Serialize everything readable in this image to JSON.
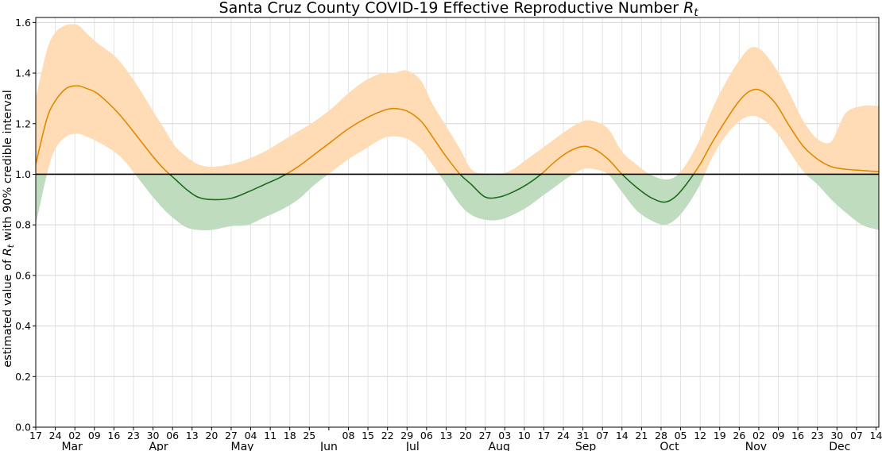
{
  "chart_data": {
    "type": "area",
    "title": "Santa Cruz County COVID-19 Effective Reproductive Number ",
    "title_math": "R",
    "title_math_sub": "t",
    "ylabel_pre": "estimated value of ",
    "ylabel_math": "R",
    "ylabel_math_sub": "t",
    "ylabel_post": " with 90% credible interval",
    "ylim": [
      0,
      1.62
    ],
    "y_ticks": [
      0.0,
      0.2,
      0.4,
      0.6,
      0.8,
      1.0,
      1.2,
      1.4,
      1.6
    ],
    "y_tick_labels": [
      "0.0",
      "0.2",
      "0.4",
      "0.6",
      "0.8",
      "1.0",
      "1.2",
      "1.4",
      "1.6"
    ],
    "xlim": [
      "2020-02-17",
      "2020-12-15"
    ],
    "x_ticks": [
      {
        "date": "2020-02-17",
        "label": "17"
      },
      {
        "date": "2020-02-24",
        "label": "24"
      },
      {
        "date": "2020-03-02",
        "label": "02"
      },
      {
        "date": "2020-03-09",
        "label": "09"
      },
      {
        "date": "2020-03-16",
        "label": "16"
      },
      {
        "date": "2020-03-23",
        "label": "23"
      },
      {
        "date": "2020-03-30",
        "label": "30"
      },
      {
        "date": "2020-04-06",
        "label": "06"
      },
      {
        "date": "2020-04-13",
        "label": "13"
      },
      {
        "date": "2020-04-20",
        "label": "20"
      },
      {
        "date": "2020-04-27",
        "label": "27"
      },
      {
        "date": "2020-05-04",
        "label": "04"
      },
      {
        "date": "2020-05-11",
        "label": "11"
      },
      {
        "date": "2020-05-18",
        "label": "18"
      },
      {
        "date": "2020-05-25",
        "label": "25"
      },
      {
        "date": "2020-06-01",
        "label": ""
      },
      {
        "date": "2020-06-08",
        "label": "08"
      },
      {
        "date": "2020-06-15",
        "label": "15"
      },
      {
        "date": "2020-06-22",
        "label": "22"
      },
      {
        "date": "2020-06-29",
        "label": "29"
      },
      {
        "date": "2020-07-06",
        "label": "06"
      },
      {
        "date": "2020-07-13",
        "label": "13"
      },
      {
        "date": "2020-07-20",
        "label": "20"
      },
      {
        "date": "2020-07-27",
        "label": "27"
      },
      {
        "date": "2020-08-03",
        "label": "03"
      },
      {
        "date": "2020-08-10",
        "label": "10"
      },
      {
        "date": "2020-08-17",
        "label": "17"
      },
      {
        "date": "2020-08-24",
        "label": "24"
      },
      {
        "date": "2020-08-31",
        "label": "31"
      },
      {
        "date": "2020-09-07",
        "label": "07"
      },
      {
        "date": "2020-09-14",
        "label": "14"
      },
      {
        "date": "2020-09-21",
        "label": "21"
      },
      {
        "date": "2020-09-28",
        "label": "28"
      },
      {
        "date": "2020-10-05",
        "label": "05"
      },
      {
        "date": "2020-10-12",
        "label": "12"
      },
      {
        "date": "2020-10-19",
        "label": "19"
      },
      {
        "date": "2020-10-26",
        "label": "26"
      },
      {
        "date": "2020-11-02",
        "label": "02"
      },
      {
        "date": "2020-11-09",
        "label": "09"
      },
      {
        "date": "2020-11-16",
        "label": "16"
      },
      {
        "date": "2020-11-23",
        "label": "23"
      },
      {
        "date": "2020-11-30",
        "label": "30"
      },
      {
        "date": "2020-12-07",
        "label": "07"
      },
      {
        "date": "2020-12-14",
        "label": "14"
      }
    ],
    "months": [
      {
        "date": "2020-03-01",
        "label": "Mar"
      },
      {
        "date": "2020-04-01",
        "label": "Apr"
      },
      {
        "date": "2020-05-01",
        "label": "May"
      },
      {
        "date": "2020-06-01",
        "label": "Jun"
      },
      {
        "date": "2020-07-01",
        "label": "Jul"
      },
      {
        "date": "2020-08-01",
        "label": "Aug"
      },
      {
        "date": "2020-09-01",
        "label": "Sep"
      },
      {
        "date": "2020-10-01",
        "label": "Oct"
      },
      {
        "date": "2020-11-01",
        "label": "Nov"
      },
      {
        "date": "2020-12-01",
        "label": "Dec"
      }
    ],
    "reference_line": 1.0,
    "grid": true,
    "colors": {
      "above_line": "#e08a00",
      "above_band": "#ffdcb5",
      "below_line": "#1e6b1e",
      "below_band": "#bfdcbf",
      "reference": "#000000",
      "grid": "#e3e3e3"
    },
    "series": [
      {
        "x": [
          "2020-02-17",
          "2020-02-21",
          "2020-02-24",
          "2020-02-28",
          "2020-03-03",
          "2020-03-06",
          "2020-03-10",
          "2020-03-16",
          "2020-03-20",
          "2020-03-25",
          "2020-03-30",
          "2020-04-03",
          "2020-04-07",
          "2020-04-11",
          "2020-04-15",
          "2020-04-20",
          "2020-04-27",
          "2020-05-03",
          "2020-05-09",
          "2020-05-15",
          "2020-05-21",
          "2020-05-27",
          "2020-06-02",
          "2020-06-08",
          "2020-06-14",
          "2020-06-20",
          "2020-06-24",
          "2020-06-29",
          "2020-07-04",
          "2020-07-08",
          "2020-07-13",
          "2020-07-18",
          "2020-07-22",
          "2020-07-27",
          "2020-08-01",
          "2020-08-06",
          "2020-08-11",
          "2020-08-16",
          "2020-08-21",
          "2020-08-26",
          "2020-08-31",
          "2020-09-04",
          "2020-09-09",
          "2020-09-14",
          "2020-09-19",
          "2020-09-24",
          "2020-09-29",
          "2020-10-03",
          "2020-10-07",
          "2020-10-12",
          "2020-10-16",
          "2020-10-21",
          "2020-10-26",
          "2020-10-30",
          "2020-11-03",
          "2020-11-08",
          "2020-11-13",
          "2020-11-18",
          "2020-11-23",
          "2020-11-28",
          "2020-12-03",
          "2020-12-09",
          "2020-12-15"
        ],
        "y": [
          1.04,
          1.22,
          1.29,
          1.34,
          1.35,
          1.34,
          1.32,
          1.26,
          1.21,
          1.14,
          1.07,
          1.02,
          0.98,
          0.94,
          0.91,
          0.9,
          0.905,
          0.93,
          0.96,
          0.99,
          1.03,
          1.08,
          1.13,
          1.18,
          1.22,
          1.25,
          1.26,
          1.25,
          1.21,
          1.15,
          1.07,
          1.0,
          0.96,
          0.91,
          0.91,
          0.93,
          0.96,
          1.0,
          1.05,
          1.09,
          1.11,
          1.1,
          1.06,
          1.0,
          0.95,
          0.91,
          0.89,
          0.91,
          0.96,
          1.04,
          1.12,
          1.21,
          1.29,
          1.33,
          1.33,
          1.28,
          1.19,
          1.11,
          1.06,
          1.03,
          1.02,
          1.015,
          1.01
        ],
        "lower": [
          0.8,
          1.0,
          1.1,
          1.15,
          1.16,
          1.15,
          1.13,
          1.09,
          1.05,
          0.98,
          0.91,
          0.86,
          0.82,
          0.79,
          0.78,
          0.78,
          0.795,
          0.8,
          0.83,
          0.86,
          0.9,
          0.96,
          1.01,
          1.06,
          1.1,
          1.14,
          1.15,
          1.14,
          1.1,
          1.04,
          0.96,
          0.88,
          0.84,
          0.82,
          0.82,
          0.84,
          0.87,
          0.91,
          0.95,
          0.99,
          1.02,
          1.02,
          1.0,
          0.93,
          0.86,
          0.82,
          0.8,
          0.82,
          0.87,
          0.96,
          1.06,
          1.15,
          1.21,
          1.23,
          1.22,
          1.17,
          1.09,
          1.01,
          0.96,
          0.9,
          0.85,
          0.8,
          0.78
        ],
        "upper": [
          1.3,
          1.49,
          1.56,
          1.59,
          1.59,
          1.56,
          1.52,
          1.47,
          1.42,
          1.34,
          1.25,
          1.18,
          1.11,
          1.07,
          1.04,
          1.03,
          1.04,
          1.06,
          1.09,
          1.13,
          1.17,
          1.21,
          1.26,
          1.32,
          1.37,
          1.4,
          1.4,
          1.41,
          1.37,
          1.28,
          1.19,
          1.1,
          1.02,
          1.0,
          1.0,
          1.02,
          1.06,
          1.1,
          1.14,
          1.18,
          1.21,
          1.21,
          1.18,
          1.09,
          1.04,
          1.0,
          0.98,
          0.99,
          1.04,
          1.14,
          1.25,
          1.36,
          1.45,
          1.5,
          1.49,
          1.42,
          1.32,
          1.21,
          1.14,
          1.13,
          1.24,
          1.27,
          1.27
        ]
      }
    ]
  }
}
